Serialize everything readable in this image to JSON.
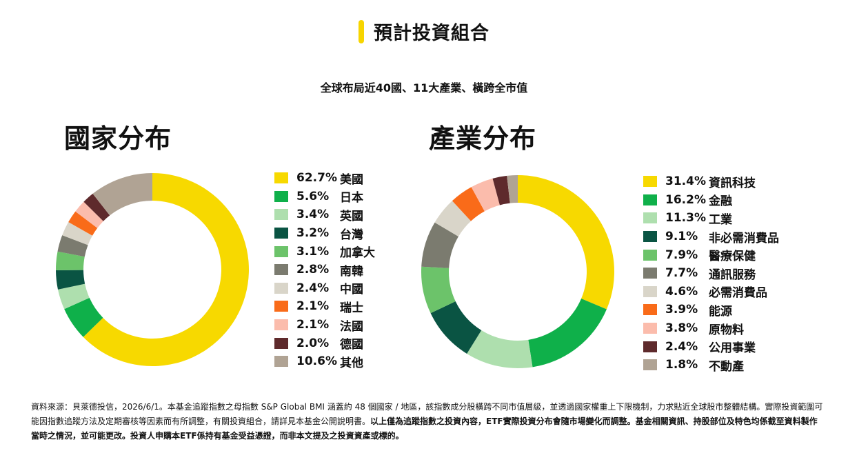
{
  "header": {
    "title": "預計投資組合",
    "accent_color": "#f7d500"
  },
  "subtitle": "全球布局近40國、11大產業、橫跨全市值",
  "chart_data": [
    {
      "type": "pie",
      "title": "國家分布",
      "donut": true,
      "categories": [
        "美國",
        "日本",
        "英國",
        "台灣",
        "加拿大",
        "南韓",
        "中國",
        "瑞士",
        "法國",
        "德國",
        "其他"
      ],
      "values": [
        62.7,
        5.6,
        3.4,
        3.2,
        3.1,
        2.8,
        2.4,
        2.1,
        2.1,
        2.0,
        10.6
      ],
      "labels": [
        "62.7%",
        "5.6%",
        "3.4%",
        "3.2%",
        "3.1%",
        "2.8%",
        "2.4%",
        "2.1%",
        "2.1%",
        "2.0%",
        "10.6%"
      ],
      "colors": [
        "#f7d900",
        "#0fb04a",
        "#aedfae",
        "#0a5443",
        "#6cc36a",
        "#7b7b6f",
        "#d9d5c9",
        "#f96b19",
        "#fbbcac",
        "#5e2a2c",
        "#b0a394"
      ],
      "legend": "right"
    },
    {
      "type": "pie",
      "title": "產業分布",
      "donut": true,
      "categories": [
        "資訊科技",
        "金融",
        "工業",
        "非必需消費品",
        "醫療保健",
        "通訊服務",
        "必需消費品",
        "能源",
        "原物料",
        "公用事業",
        "不動產"
      ],
      "values": [
        31.4,
        16.2,
        11.3,
        9.1,
        7.9,
        7.7,
        4.6,
        3.9,
        3.8,
        2.4,
        1.8
      ],
      "labels": [
        "31.4%",
        "16.2%",
        "11.3%",
        "9.1%",
        "7.9%",
        "7.7%",
        "4.6%",
        "3.9%",
        "3.8%",
        "2.4%",
        "1.8%"
      ],
      "colors": [
        "#f7d900",
        "#0fb04a",
        "#aedfae",
        "#0a5443",
        "#6cc36a",
        "#7b7b6f",
        "#d9d5c9",
        "#f96b19",
        "#fbbcac",
        "#5e2a2c",
        "#b0a394"
      ],
      "legend": "right"
    }
  ],
  "footnote": {
    "normal": "資料來源：貝萊德投信，2026/6/1。本基金追蹤指數之母指數 S&P Global BMI 涵蓋約 48 個國家 / 地區，該指數成分股橫跨不同市值層級，並透過國家權重上下限機制，力求貼近全球股市整體結構。實際投資範圍可能因指數追蹤方法及定期審核等因素而有所調整，有關投資組合，請詳見本基金公開說明書。",
    "bold": "以上僅為追蹤指數之投資內容，ETF實際投資分布會隨市場變化而調整。基金相關資訊、持股部位及特色均係截至資料製作當時之情況，並可能更改。投資人申購本ETF係持有基金受益憑證，而非本文提及之投資資產或標的。"
  }
}
